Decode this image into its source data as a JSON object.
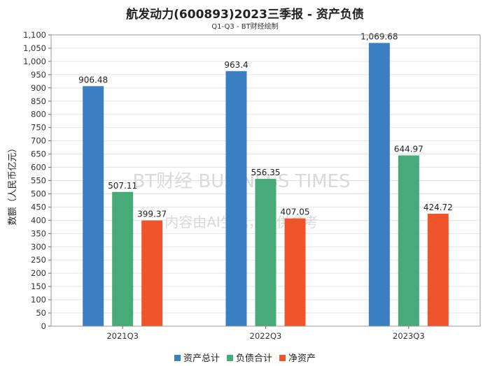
{
  "title": "航发动力(600893)2023三季报 - 资产负债",
  "subtitle": "Q1-Q3 - BT财经绘制",
  "watermark": "内容由AI生成，仅供参考",
  "watermark_logo": "BT财经 BUSINESS TIMES",
  "chart_data": {
    "type": "bar",
    "categories": [
      "2021Q3",
      "2022Q3",
      "2023Q3"
    ],
    "series": [
      {
        "name": "资产总计",
        "color": "#3a7fc1",
        "values": [
          906.48,
          963.4,
          1069.68
        ],
        "labels": [
          "906.48",
          "963.4",
          "1,069.68"
        ]
      },
      {
        "name": "负债合计",
        "color": "#46ab78",
        "values": [
          507.11,
          556.35,
          644.97
        ],
        "labels": [
          "507.11",
          "556.35",
          "644.97"
        ]
      },
      {
        "name": "净资产",
        "color": "#f0542a",
        "values": [
          399.37,
          407.05,
          424.72
        ],
        "labels": [
          "399.37",
          "407.05",
          "424.72"
        ]
      }
    ],
    "ylabel": "数额（人民币亿元）",
    "xlabel": "",
    "ylim": [
      0,
      1100
    ],
    "ytick_step": 50,
    "yticks": [
      "0",
      "50",
      "100",
      "150",
      "200",
      "250",
      "300",
      "350",
      "400",
      "450",
      "500",
      "550",
      "600",
      "650",
      "700",
      "750",
      "800",
      "850",
      "900",
      "950",
      "1,000",
      "1,050",
      "1,100"
    ],
    "grid": "y",
    "legend_position": "bottom"
  }
}
